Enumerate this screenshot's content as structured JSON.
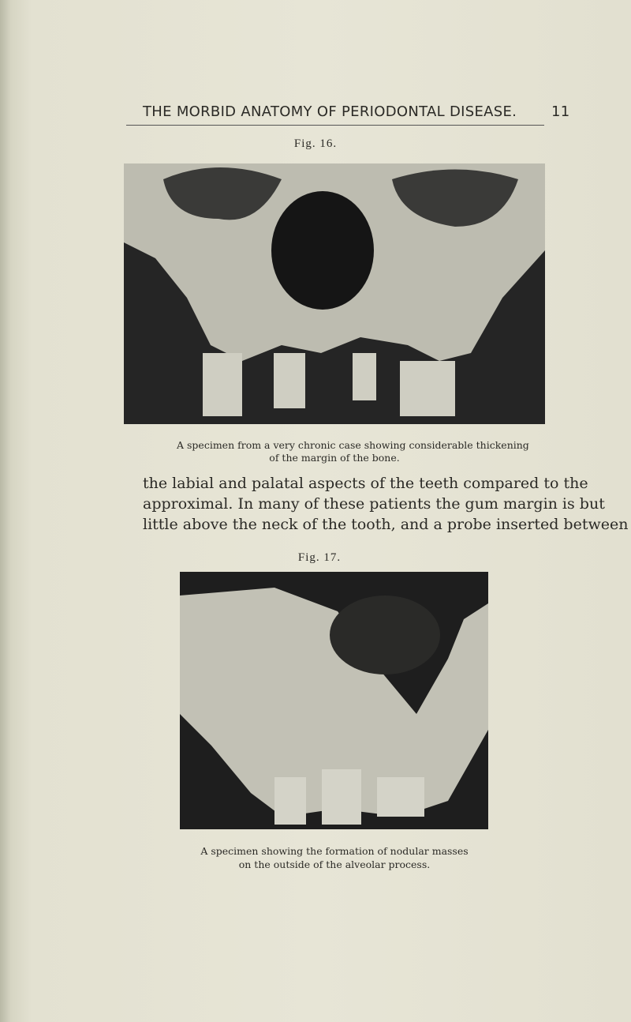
{
  "header": {
    "title": "THE MORBID ANATOMY OF PERIODONTAL DISEASE.",
    "page_number": "11"
  },
  "figures": [
    {
      "label": "Fig. 16.",
      "caption": [
        "A specimen from a very chronic case showing considerable thickening",
        "of the margin of the bone."
      ]
    },
    {
      "label": "Fig. 17.",
      "caption": [
        "A specimen showing the formation of nodular masses",
        "on the outside of the alveolar process."
      ]
    }
  ],
  "body": {
    "lines": [
      "the labial and palatal aspects of the teeth compared to the",
      "approximal. In many of these patients the gum margin is but",
      "little above the neck of the tooth, and a probe inserted between"
    ]
  }
}
